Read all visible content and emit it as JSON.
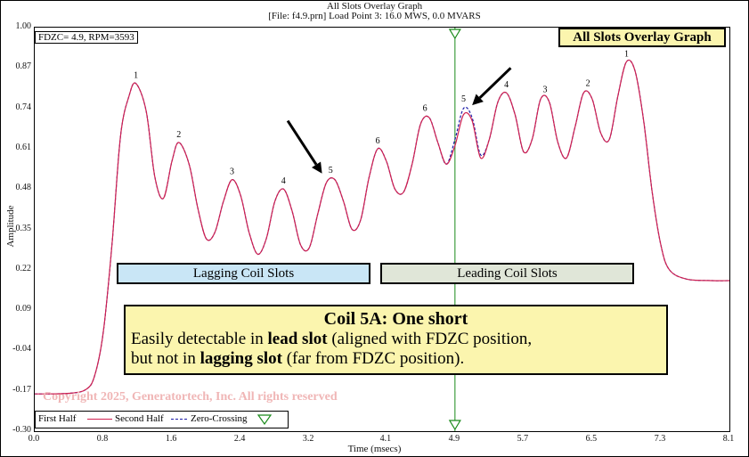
{
  "header": {
    "title": "All Slots Overlay Graph",
    "subtitle": "[File: f4.9.prn]  Load Point 3:  16.0 MWS,   0.0 MVARS"
  },
  "chart_data": {
    "type": "line",
    "xlabel": "Time (msecs)",
    "ylabel": "Amplitude",
    "xlim": [
      0.0,
      8.1
    ],
    "ylim": [
      -0.3,
      1.0
    ],
    "x_ticks": [
      "0.0",
      "0.8",
      "1.6",
      "2.4",
      "3.2",
      "4.1",
      "4.9",
      "5.7",
      "6.5",
      "7.3",
      "8.1"
    ],
    "y_ticks": [
      "1.00",
      "0.87",
      "0.74",
      "0.61",
      "0.48",
      "0.35",
      "0.22",
      "0.09",
      "-0.04",
      "-0.17",
      "-0.30"
    ],
    "grid": false,
    "fdzc_marker_x": 4.9,
    "series": [
      {
        "name": "First Half",
        "color": "#1a1aa8",
        "style": "solid",
        "points": [
          [
            0.0,
            -0.18
          ],
          [
            0.4,
            -0.178
          ],
          [
            0.6,
            -0.165
          ],
          [
            0.7,
            -0.12
          ],
          [
            0.8,
            0.02
          ],
          [
            0.9,
            0.3
          ],
          [
            1.0,
            0.65
          ],
          [
            1.1,
            0.78
          ],
          [
            1.18,
            0.82
          ],
          [
            1.3,
            0.73
          ],
          [
            1.4,
            0.52
          ],
          [
            1.5,
            0.45
          ],
          [
            1.6,
            0.57
          ],
          [
            1.68,
            0.63
          ],
          [
            1.8,
            0.56
          ],
          [
            1.9,
            0.42
          ],
          [
            2.0,
            0.32
          ],
          [
            2.1,
            0.34
          ],
          [
            2.2,
            0.44
          ],
          [
            2.3,
            0.51
          ],
          [
            2.4,
            0.46
          ],
          [
            2.5,
            0.34
          ],
          [
            2.6,
            0.27
          ],
          [
            2.7,
            0.32
          ],
          [
            2.8,
            0.44
          ],
          [
            2.9,
            0.48
          ],
          [
            3.0,
            0.41
          ],
          [
            3.1,
            0.3
          ],
          [
            3.2,
            0.29
          ],
          [
            3.3,
            0.4
          ],
          [
            3.4,
            0.5
          ],
          [
            3.5,
            0.51
          ],
          [
            3.6,
            0.44
          ],
          [
            3.7,
            0.35
          ],
          [
            3.8,
            0.38
          ],
          [
            3.9,
            0.52
          ],
          [
            4.0,
            0.61
          ],
          [
            4.1,
            0.57
          ],
          [
            4.2,
            0.48
          ],
          [
            4.3,
            0.47
          ],
          [
            4.4,
            0.56
          ],
          [
            4.5,
            0.69
          ],
          [
            4.6,
            0.71
          ],
          [
            4.7,
            0.63
          ],
          [
            4.8,
            0.56
          ],
          [
            4.9,
            0.64
          ],
          [
            5.0,
            0.74
          ],
          [
            5.1,
            0.71
          ],
          [
            5.2,
            0.59
          ],
          [
            5.3,
            0.64
          ],
          [
            5.4,
            0.76
          ],
          [
            5.5,
            0.79
          ],
          [
            5.6,
            0.72
          ],
          [
            5.7,
            0.6
          ],
          [
            5.8,
            0.64
          ],
          [
            5.9,
            0.77
          ],
          [
            6.0,
            0.76
          ],
          [
            6.1,
            0.63
          ],
          [
            6.2,
            0.58
          ],
          [
            6.3,
            0.68
          ],
          [
            6.4,
            0.79
          ],
          [
            6.5,
            0.77
          ],
          [
            6.6,
            0.66
          ],
          [
            6.7,
            0.64
          ],
          [
            6.8,
            0.78
          ],
          [
            6.9,
            0.89
          ],
          [
            7.0,
            0.86
          ],
          [
            7.1,
            0.7
          ],
          [
            7.2,
            0.47
          ],
          [
            7.3,
            0.3
          ],
          [
            7.4,
            0.22
          ],
          [
            7.6,
            0.19
          ],
          [
            7.9,
            0.185
          ],
          [
            8.1,
            0.185
          ]
        ]
      },
      {
        "name": "Second Half",
        "color": "#d02050",
        "style": "solid",
        "points": [
          [
            0.0,
            -0.18
          ],
          [
            0.4,
            -0.178
          ],
          [
            0.6,
            -0.165
          ],
          [
            0.7,
            -0.12
          ],
          [
            0.8,
            0.02
          ],
          [
            0.9,
            0.3
          ],
          [
            1.0,
            0.65
          ],
          [
            1.1,
            0.78
          ],
          [
            1.18,
            0.82
          ],
          [
            1.3,
            0.73
          ],
          [
            1.4,
            0.52
          ],
          [
            1.5,
            0.45
          ],
          [
            1.6,
            0.57
          ],
          [
            1.68,
            0.63
          ],
          [
            1.8,
            0.56
          ],
          [
            1.9,
            0.42
          ],
          [
            2.0,
            0.32
          ],
          [
            2.1,
            0.34
          ],
          [
            2.2,
            0.44
          ],
          [
            2.3,
            0.51
          ],
          [
            2.4,
            0.46
          ],
          [
            2.5,
            0.34
          ],
          [
            2.6,
            0.27
          ],
          [
            2.7,
            0.32
          ],
          [
            2.8,
            0.44
          ],
          [
            2.9,
            0.48
          ],
          [
            3.0,
            0.41
          ],
          [
            3.1,
            0.3
          ],
          [
            3.2,
            0.29
          ],
          [
            3.3,
            0.4
          ],
          [
            3.4,
            0.5
          ],
          [
            3.5,
            0.51
          ],
          [
            3.6,
            0.44
          ],
          [
            3.7,
            0.35
          ],
          [
            3.8,
            0.38
          ],
          [
            3.9,
            0.52
          ],
          [
            4.0,
            0.61
          ],
          [
            4.1,
            0.57
          ],
          [
            4.2,
            0.48
          ],
          [
            4.3,
            0.47
          ],
          [
            4.4,
            0.56
          ],
          [
            4.5,
            0.69
          ],
          [
            4.6,
            0.71
          ],
          [
            4.7,
            0.63
          ],
          [
            4.8,
            0.56
          ],
          [
            4.9,
            0.62
          ],
          [
            5.0,
            0.72
          ],
          [
            5.1,
            0.7
          ],
          [
            5.2,
            0.58
          ],
          [
            5.3,
            0.64
          ],
          [
            5.4,
            0.76
          ],
          [
            5.5,
            0.79
          ],
          [
            5.6,
            0.72
          ],
          [
            5.7,
            0.6
          ],
          [
            5.8,
            0.64
          ],
          [
            5.9,
            0.77
          ],
          [
            6.0,
            0.76
          ],
          [
            6.1,
            0.63
          ],
          [
            6.2,
            0.58
          ],
          [
            6.3,
            0.68
          ],
          [
            6.4,
            0.79
          ],
          [
            6.5,
            0.77
          ],
          [
            6.6,
            0.66
          ],
          [
            6.7,
            0.64
          ],
          [
            6.8,
            0.78
          ],
          [
            6.9,
            0.89
          ],
          [
            7.0,
            0.86
          ],
          [
            7.1,
            0.7
          ],
          [
            7.2,
            0.47
          ],
          [
            7.3,
            0.3
          ],
          [
            7.4,
            0.22
          ],
          [
            7.6,
            0.19
          ],
          [
            7.9,
            0.185
          ],
          [
            8.1,
            0.185
          ]
        ]
      },
      {
        "name": "Zero-Crossing",
        "color": "#1a8a1a",
        "style": "vertical-marker",
        "points": [
          [
            4.9,
            -0.3
          ],
          [
            4.9,
            1.0
          ]
        ]
      }
    ],
    "peak_labels": [
      {
        "text": "1",
        "x": 1.18,
        "y": 0.82
      },
      {
        "text": "2",
        "x": 1.68,
        "y": 0.63
      },
      {
        "text": "3",
        "x": 2.3,
        "y": 0.51
      },
      {
        "text": "4",
        "x": 2.9,
        "y": 0.48
      },
      {
        "text": "5",
        "x": 3.45,
        "y": 0.515
      },
      {
        "text": "6",
        "x": 4.0,
        "y": 0.61
      },
      {
        "text": "6",
        "x": 4.55,
        "y": 0.715
      },
      {
        "text": "5",
        "x": 5.0,
        "y": 0.745
      },
      {
        "text": "4",
        "x": 5.5,
        "y": 0.79
      },
      {
        "text": "3",
        "x": 5.95,
        "y": 0.775
      },
      {
        "text": "2",
        "x": 6.45,
        "y": 0.795
      },
      {
        "text": "1",
        "x": 6.9,
        "y": 0.89
      }
    ],
    "arrows": [
      {
        "from": [
          2.95,
          0.7
        ],
        "to": [
          3.35,
          0.53
        ]
      },
      {
        "from": [
          5.55,
          0.87
        ],
        "to": [
          5.1,
          0.75
        ]
      }
    ],
    "legend": "bottom-left"
  },
  "annotations": {
    "fdzc_box": "FDZC= 4.9, RPM=3593",
    "graph_badge": "All Slots Overlay Graph",
    "lagging_label": "Lagging Coil Slots",
    "leading_label": "Leading Coil Slots",
    "callout_title": "Coil 5A: One short",
    "callout_line1_a": "Easily detectable in ",
    "callout_line1_b": "lead slot",
    "callout_line1_c": " (aligned with FDZC position,",
    "callout_line2_a": "but not in ",
    "callout_line2_b": "lagging slot",
    "callout_line2_c": " (far from FDZC position).",
    "copyright": "Copyright 2025, Generatortech, Inc. All rights reserved"
  },
  "legend": {
    "first_half": "First Half",
    "second_half": "Second Half",
    "zero_crossing": "Zero-Crossing"
  }
}
